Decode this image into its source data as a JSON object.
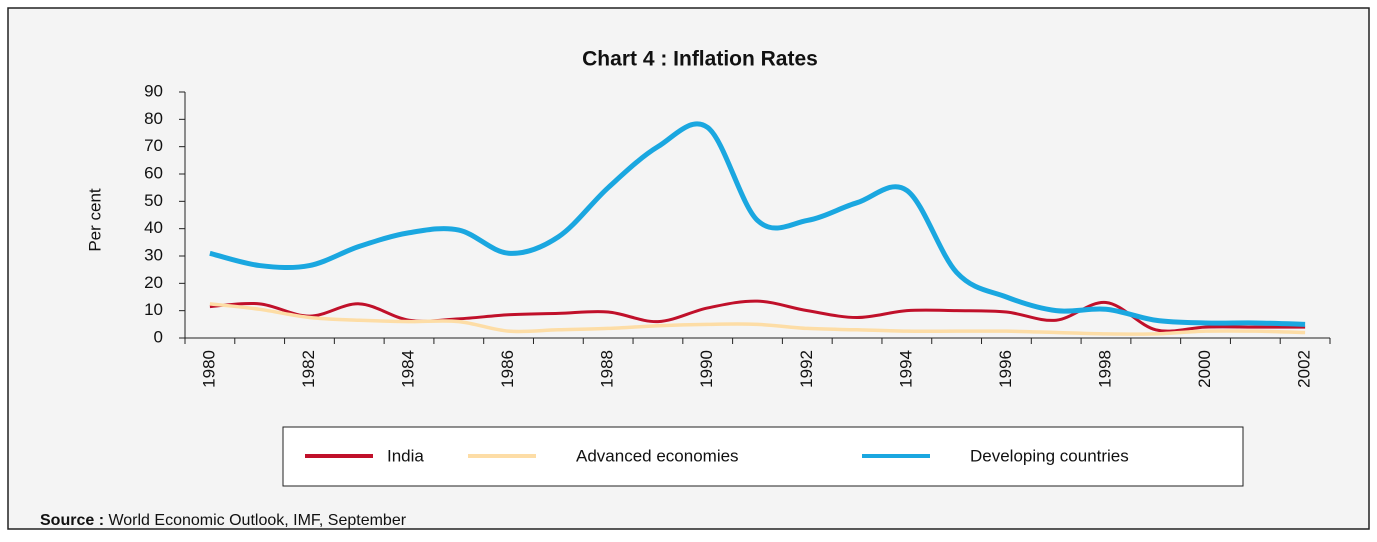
{
  "chart_data": {
    "type": "line",
    "title": "Chart 4 : Inflation Rates",
    "y_label": "Per cent",
    "categories": [
      "1980",
      null,
      "1982",
      null,
      "1984",
      null,
      "1986",
      null,
      "1988",
      null,
      "1990",
      null,
      "1992",
      null,
      "1994",
      null,
      "1996",
      null,
      "1998",
      null,
      "2000",
      null,
      "2002"
    ],
    "series": [
      {
        "name": "India",
        "color": "#c0102a",
        "values": [
          11.5,
          12.5,
          8,
          12.5,
          6.5,
          7,
          8.5,
          9,
          9.5,
          6,
          11,
          13.5,
          10,
          7.5,
          10,
          10,
          9.5,
          6.5,
          13,
          3,
          4,
          4,
          4
        ]
      },
      {
        "name": "Advanced economies",
        "color": "#fddda6",
        "values": [
          12.5,
          10.5,
          7.5,
          6.5,
          6,
          6,
          2.5,
          3,
          3.5,
          4.5,
          5,
          5,
          3.5,
          3,
          2.5,
          2.5,
          2.5,
          2,
          1.5,
          1.5,
          2.5,
          2.5,
          2
        ]
      },
      {
        "name": "Developing countries",
        "color": "#1aa7e0",
        "values": [
          31,
          26.5,
          26.5,
          33.5,
          38.5,
          39.5,
          31,
          37,
          55,
          70,
          77,
          43,
          43,
          49.5,
          54,
          24,
          15,
          10,
          10.5,
          6.5,
          5.5,
          5.5,
          5
        ]
      }
    ],
    "ylim": [
      0,
      90
    ],
    "yticks": [
      0,
      10,
      20,
      30,
      40,
      50,
      60,
      70,
      80,
      90
    ],
    "grid": false,
    "source_label": "Source :",
    "source": " World Economic Outlook, IMF, September"
  }
}
